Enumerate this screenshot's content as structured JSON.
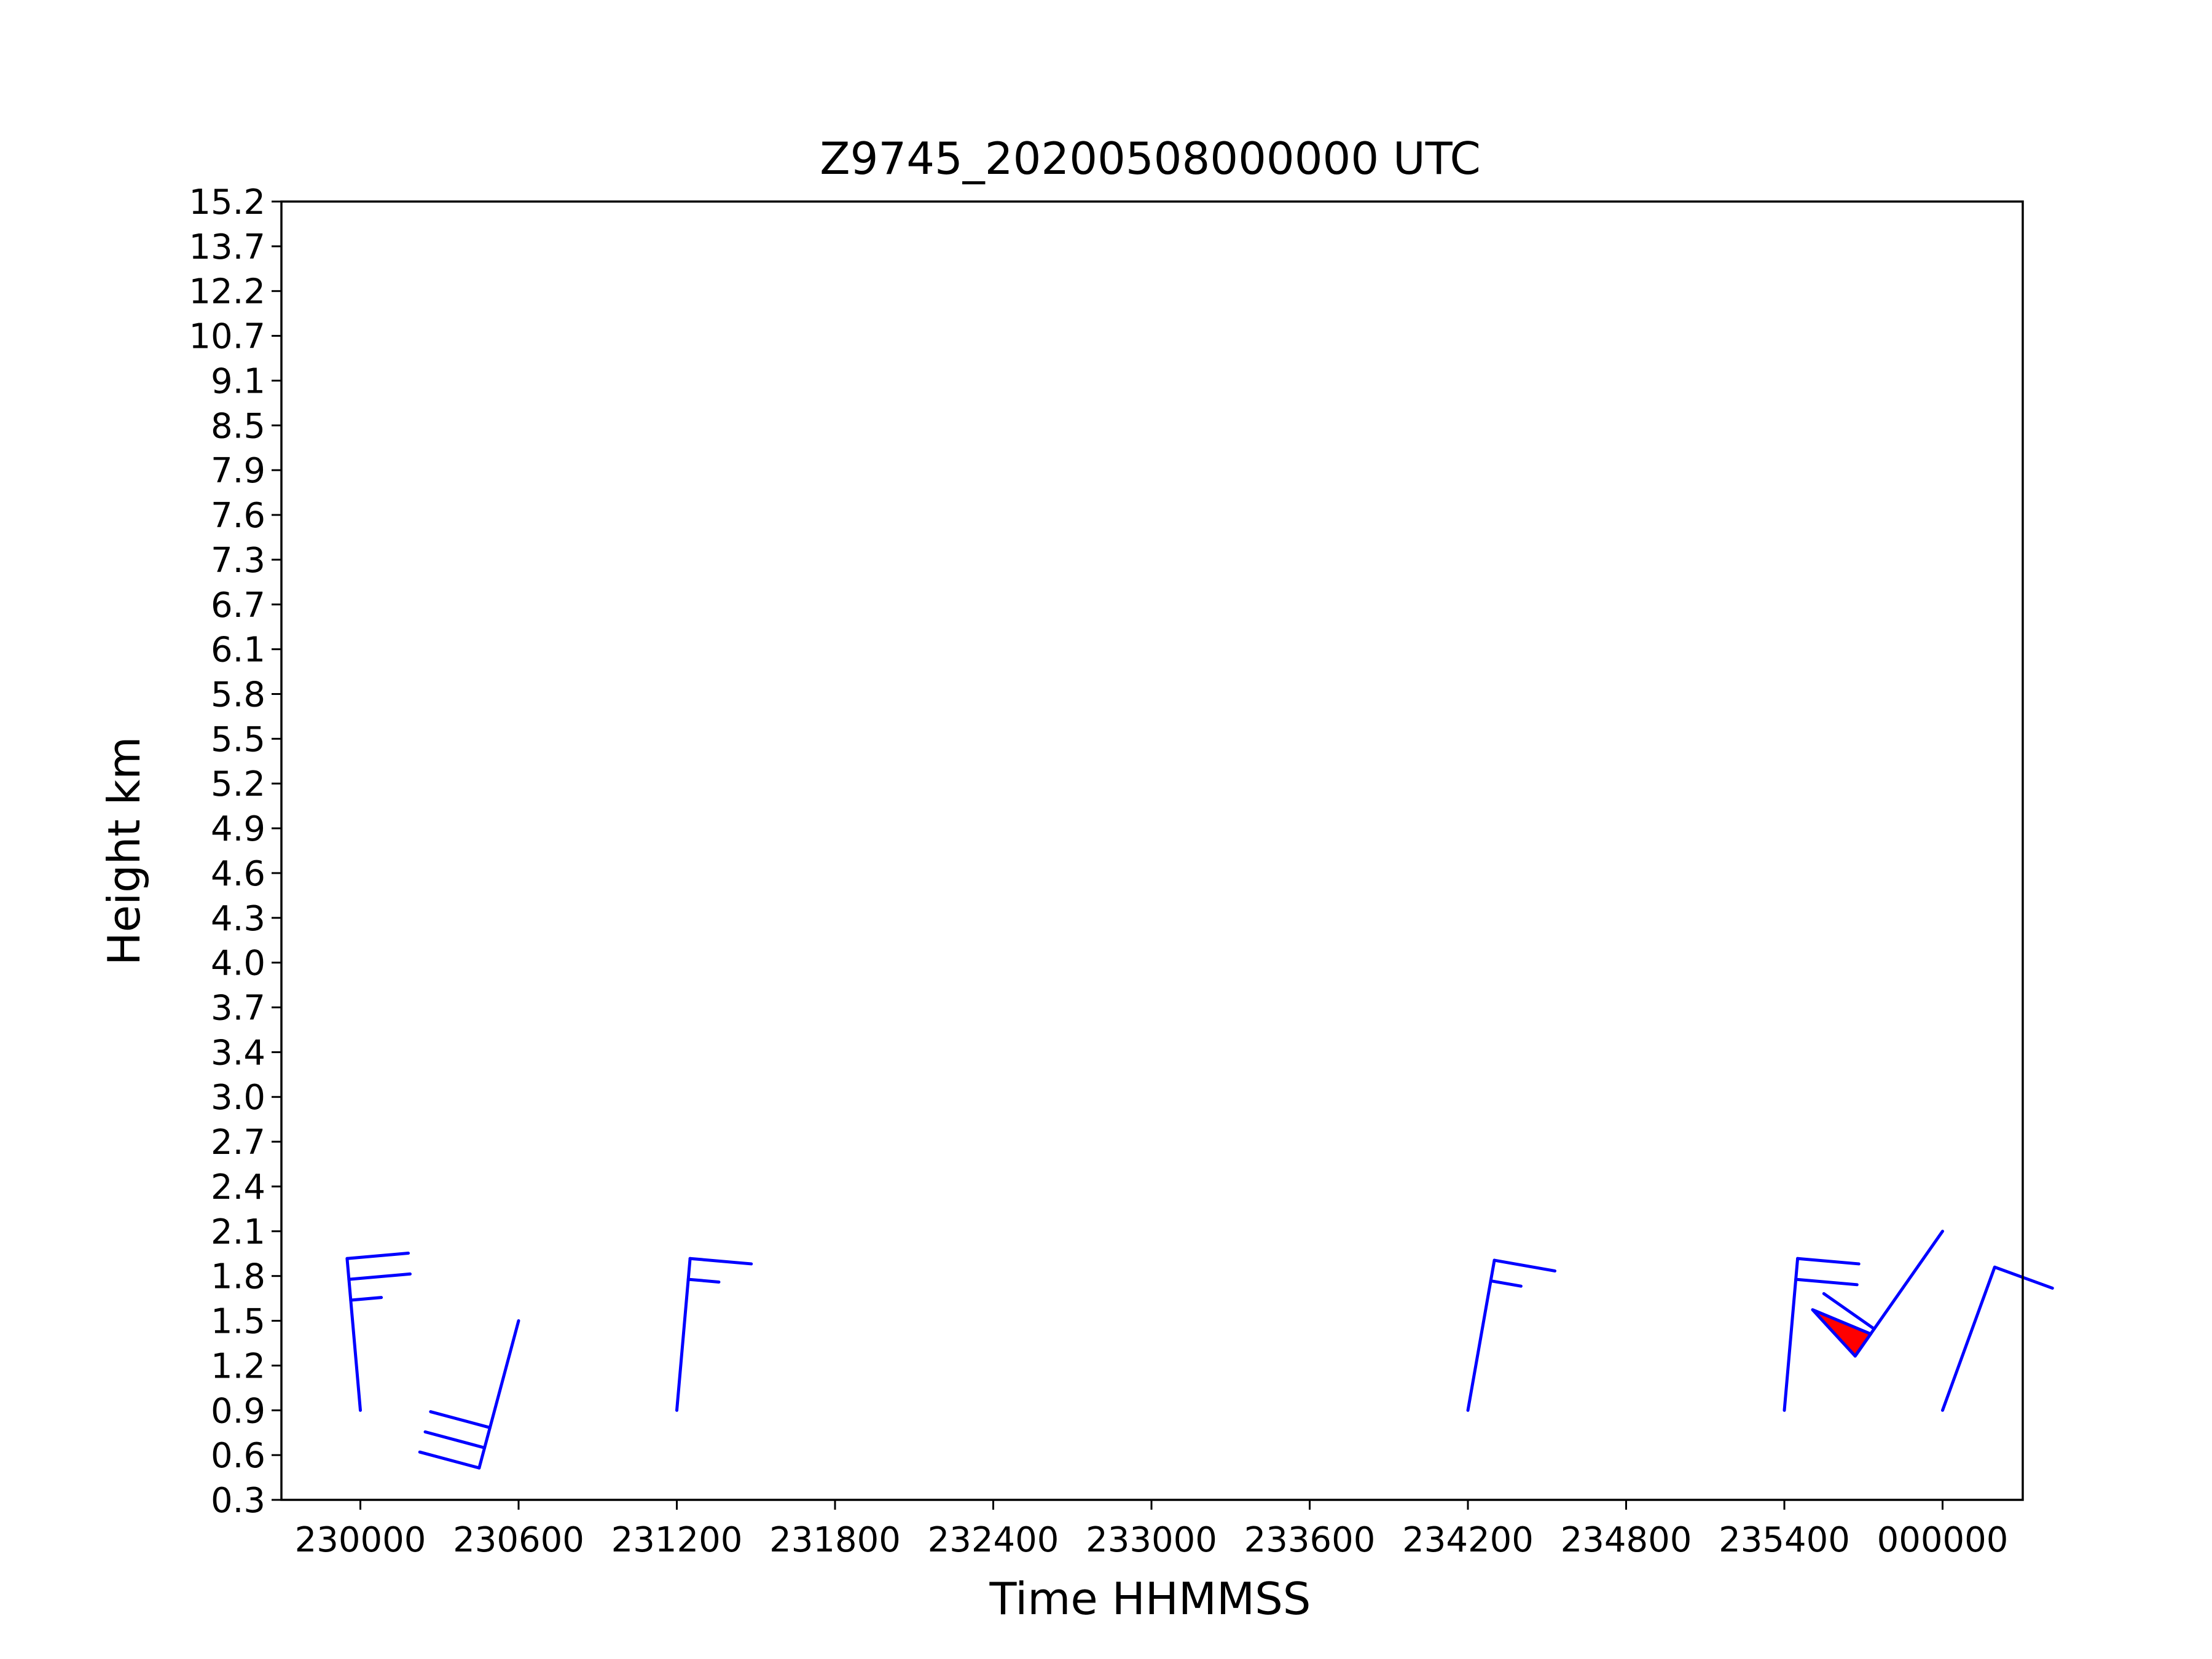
{
  "chart_data": {
    "type": "wind_barb_time_height",
    "title": "Z9745_20200508000000 UTC",
    "xlabel": "Time HHMMSS",
    "ylabel": "Height km",
    "x_ticks": [
      "230000",
      "230600",
      "231200",
      "231800",
      "232400",
      "233000",
      "233600",
      "234200",
      "234800",
      "235400",
      "000000"
    ],
    "y_ticks": [
      "0.3",
      "0.6",
      "0.9",
      "1.2",
      "1.5",
      "1.8",
      "2.1",
      "2.4",
      "2.7",
      "3.0",
      "3.4",
      "3.7",
      "4.0",
      "4.3",
      "4.6",
      "4.9",
      "5.2",
      "5.5",
      "5.8",
      "6.1",
      "6.7",
      "7.3",
      "7.6",
      "7.9",
      "8.5",
      "9.1",
      "10.7",
      "12.2",
      "13.7",
      "15.2"
    ],
    "barb_color": "#0000ff",
    "pennant_fill": "#ff0000",
    "series": [
      {
        "time": "230000",
        "height_km": 0.9,
        "direction_deg": 355,
        "speed_m_s": 10
      },
      {
        "time": "230600",
        "height_km": 1.5,
        "direction_deg": 195,
        "speed_m_s": 12
      },
      {
        "time": "231200",
        "height_km": 0.9,
        "direction_deg": 5,
        "speed_m_s": 6
      },
      {
        "time": "234200",
        "height_km": 0.9,
        "direction_deg": 10,
        "speed_m_s": 6
      },
      {
        "time": "235400",
        "height_km": 0.9,
        "direction_deg": 5,
        "speed_m_s": 8
      },
      {
        "time": "000000",
        "height_km": 0.9,
        "direction_deg": 20,
        "speed_m_s": 4
      },
      {
        "time": "000000",
        "height_km": 2.1,
        "direction_deg": 215,
        "speed_m_s": 25
      }
    ]
  }
}
